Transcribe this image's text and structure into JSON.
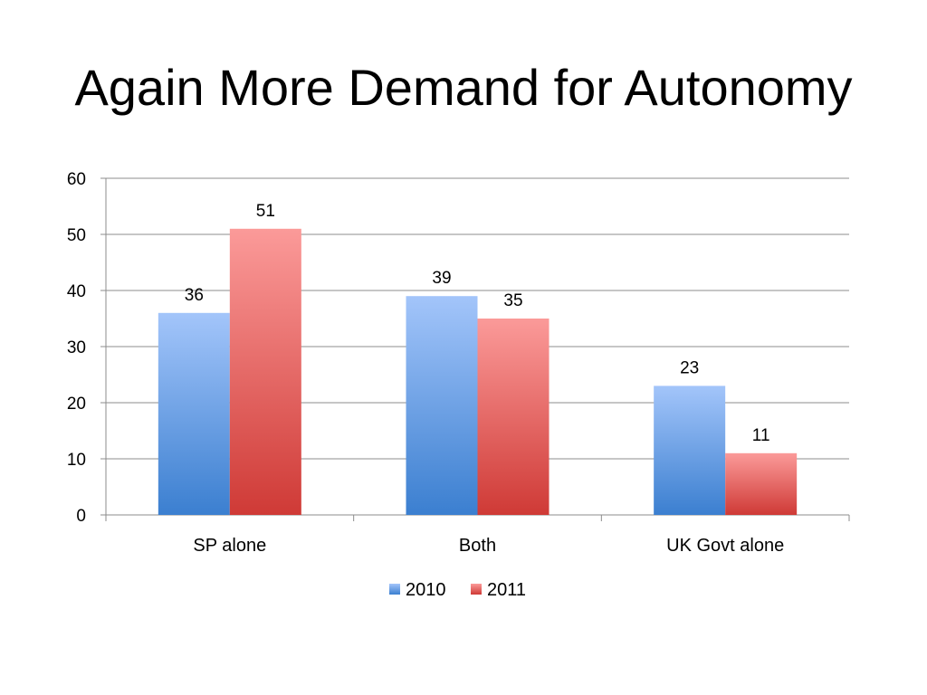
{
  "slide": {
    "title": "Again More Demand for Autonomy"
  },
  "chart_data": {
    "type": "bar",
    "title": "",
    "xlabel": "",
    "ylabel": "",
    "categories": [
      "SP alone",
      "Both",
      "UK Govt alone"
    ],
    "series": [
      {
        "name": "2010",
        "values": [
          36,
          39,
          23
        ],
        "color_top": "#a3c5fa",
        "color_bottom": "#3b7fd0"
      },
      {
        "name": "2011",
        "values": [
          51,
          35,
          11
        ],
        "color_top": "#fb9a99",
        "color_bottom": "#cf3a36"
      }
    ],
    "ylim": [
      0,
      60
    ],
    "yticks": [
      0,
      10,
      20,
      30,
      40,
      50,
      60
    ],
    "grid": true,
    "data_labels": true,
    "legend_position": "bottom"
  }
}
